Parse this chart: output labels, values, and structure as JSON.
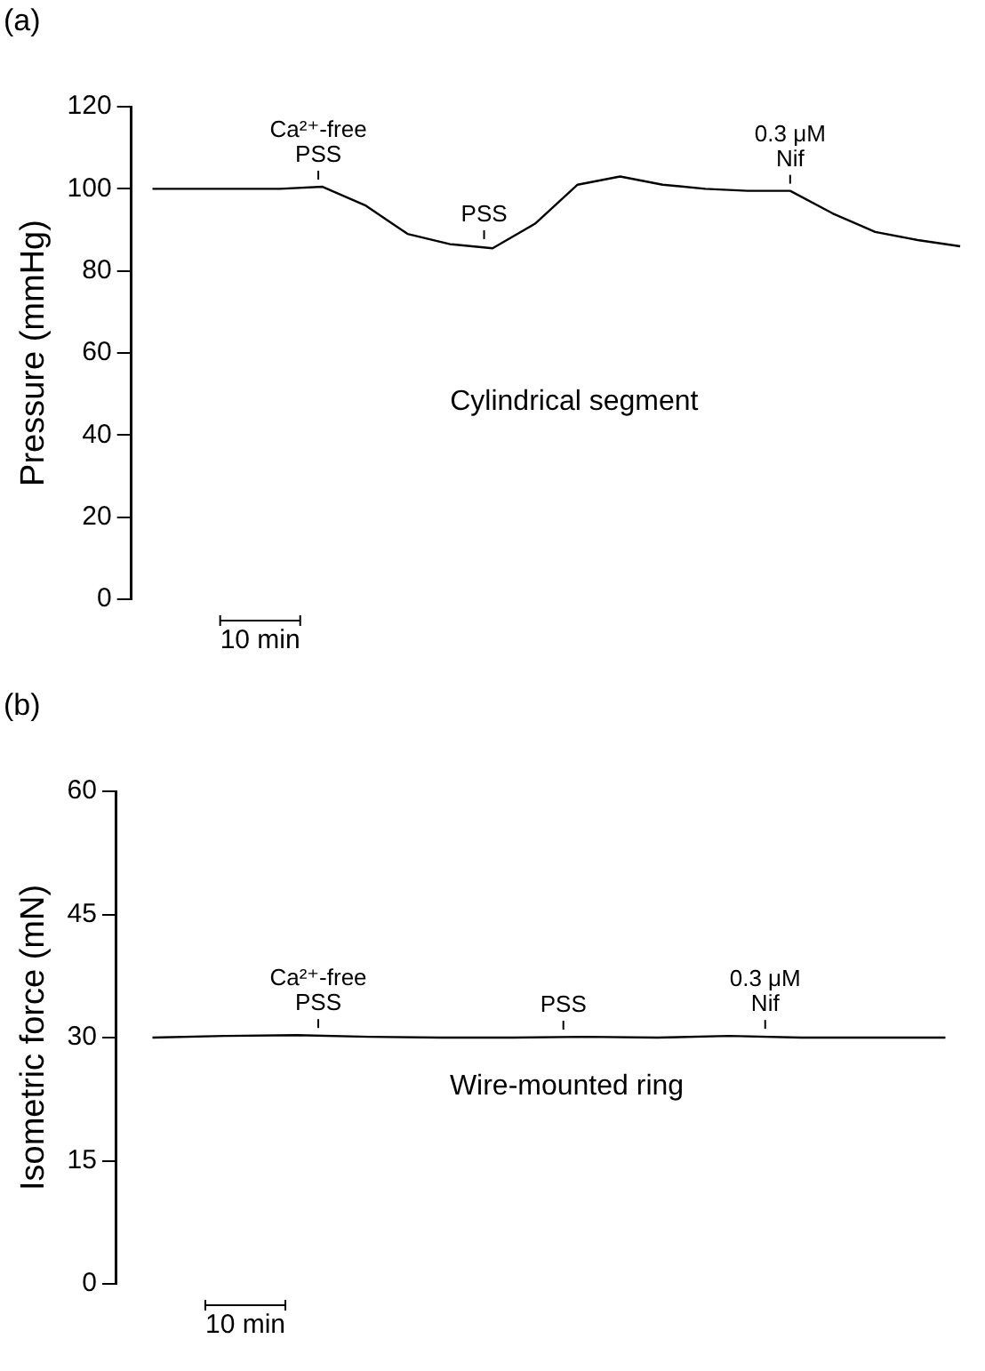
{
  "chart_data": [
    {
      "type": "line",
      "title": "(a)",
      "ylabel": "Pressure (mmHg)",
      "categories": [
        null,
        null,
        null,
        null,
        null,
        null,
        null,
        null,
        null,
        null,
        null,
        null,
        null,
        null,
        null,
        null,
        null,
        null,
        null,
        null
      ],
      "series": [
        {
          "color": "#000000",
          "values": [
            100,
            100,
            100,
            100,
            100.5,
            96,
            89,
            86.5,
            85.5,
            91.5,
            101,
            103,
            101,
            100,
            99.5,
            99.5,
            94,
            89.5,
            87.5,
            86
          ]
        }
      ],
      "ylim": [
        0,
        120
      ],
      "yticks": [
        0,
        20,
        40,
        60,
        80,
        100,
        120
      ],
      "tick_labels": "y",
      "grid": false,
      "legend": false,
      "marker": "none",
      "line_style": "solid",
      "annotations": [
        "Cylindrical segment",
        "10 min",
        {
          "text": "Ca²⁺-free\nPSS",
          "y": 100.5
        },
        {
          "text": "PSS",
          "y": 86
        },
        {
          "text": "0.3 μM\nNif",
          "y": 99.5
        }
      ]
    },
    {
      "type": "line",
      "title": "(b)",
      "ylabel": "Isometric force (mN)",
      "categories": [
        null,
        null,
        null,
        null,
        null,
        null,
        null,
        null,
        null,
        null,
        null,
        null
      ],
      "series": [
        {
          "color": "#000000",
          "values": [
            30,
            30.2,
            30.3,
            30.1,
            30,
            30,
            30.1,
            30,
            30.2,
            30,
            30,
            30
          ]
        }
      ],
      "ylim": [
        0,
        60
      ],
      "yticks": [
        0,
        15,
        30,
        45,
        60
      ],
      "tick_labels": "y",
      "grid": false,
      "legend": false,
      "marker": "none",
      "line_style": "solid",
      "annotations": [
        "Wire-mounted ring",
        "10 min",
        {
          "text": "Ca²⁺-free\nPSS",
          "y": 30.3
        },
        {
          "text": "PSS",
          "y": 30.1
        },
        {
          "text": "0.3 μM\nNif",
          "y": 30.2
        }
      ]
    }
  ]
}
